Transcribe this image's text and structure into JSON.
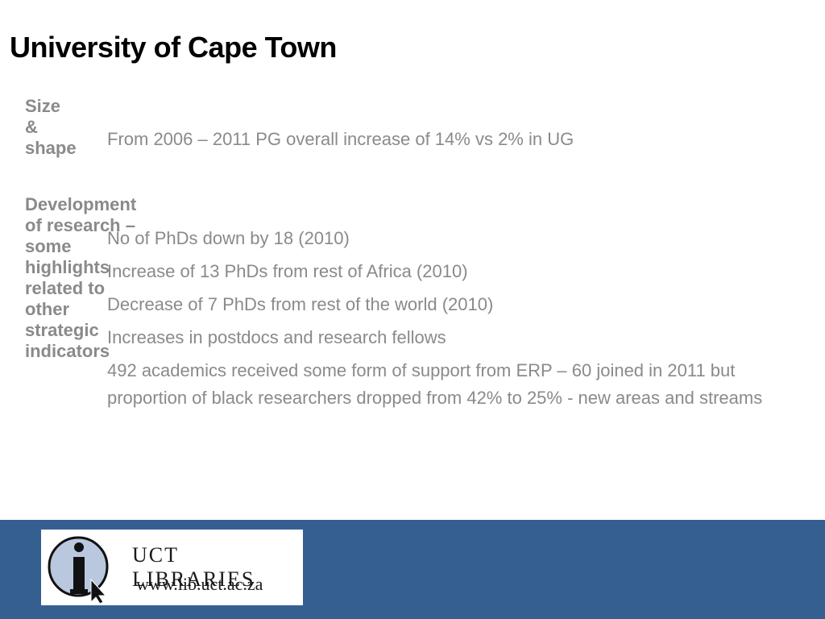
{
  "slide": {
    "title": "University of Cape Town"
  },
  "sections": [
    {
      "heading": "Size & shape",
      "items": [
        "From 2006 – 2011 PG overall increase of 14% vs 2% in UG"
      ]
    },
    {
      "heading": "Development of research – some highlights related to other strategic indicators",
      "items": [
        "No of PhDs down by 18 (2010)",
        "Increase of 13 PhDs from rest of Africa (2010)",
        "Decrease of 7 PhDs from rest of the world (2010)",
        "Increases in postdocs and research fellows",
        "492 academics received some form of support from ERP – 60 joined in 2011 but proportion of black researchers dropped from 42% to 25% - new areas and streams"
      ]
    }
  ],
  "footer": {
    "logo_name": "UCT LIBRARIES",
    "logo_url": "www.lib.uct.ac.za",
    "background_color": "#365f91"
  }
}
